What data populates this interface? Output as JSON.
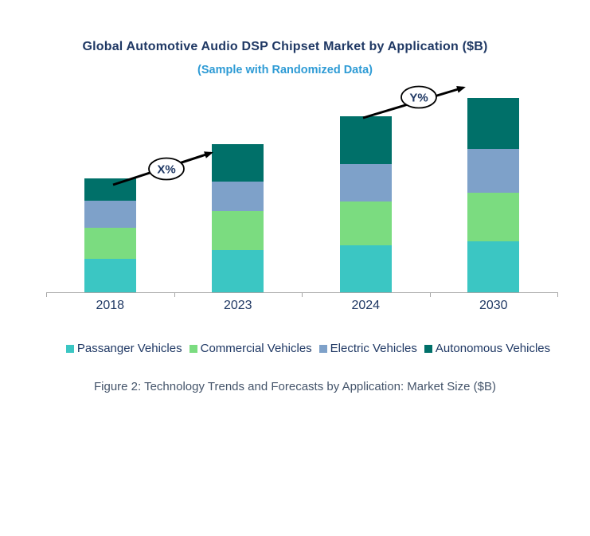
{
  "header": {
    "title": "Global Automotive Audio DSP Chipset Market by Application ($B)",
    "subtitle": "(Sample with Randomized Data)"
  },
  "annotations": {
    "growth_1": "X%",
    "growth_2": "Y%"
  },
  "caption": "Figure 2: Technology Trends and Forecasts by Application: Market Size ($B)",
  "colors": {
    "title_text": "#1F3864",
    "subtitle_text": "#2E9BD5",
    "axis_labels": "#1F3864",
    "caption_text": "#44546A",
    "axis_line": "#A6A6A6",
    "arrow": "#000000"
  },
  "chart_data": {
    "type": "bar",
    "stacked": true,
    "title": "Global Automotive Audio DSP Chipset Market by Application ($B)",
    "subtitle": "(Sample with Randomized Data)",
    "xlabel": "",
    "ylabel": "",
    "categories": [
      "2018",
      "2023",
      "2024",
      "2030"
    ],
    "series": [
      {
        "name": "Passanger Vehicles",
        "color": "#3BC6C3",
        "values": [
          4.2,
          5.3,
          5.9,
          6.4
        ]
      },
      {
        "name": "Commercial Vehicles",
        "color": "#7BDC80",
        "values": [
          3.9,
          4.9,
          5.5,
          6.1
        ]
      },
      {
        "name": "Electric Vehicles",
        "color": "#7EA1C9",
        "values": [
          3.4,
          3.7,
          4.7,
          5.5
        ]
      },
      {
        "name": "Autonomous Vehicles",
        "color": "#007069",
        "values": [
          2.8,
          4.7,
          6.0,
          6.4
        ]
      }
    ],
    "totals": [
      14.3,
      18.6,
      22.1,
      24.4
    ],
    "ylim": [
      0,
      26
    ],
    "value_axis_visible": false,
    "grid": false,
    "legend_position": "bottom",
    "annotations": [
      {
        "label": "X%",
        "from_category": "2018",
        "to_category": "2023"
      },
      {
        "label": "Y%",
        "from_category": "2024",
        "to_category": "2030"
      }
    ]
  }
}
